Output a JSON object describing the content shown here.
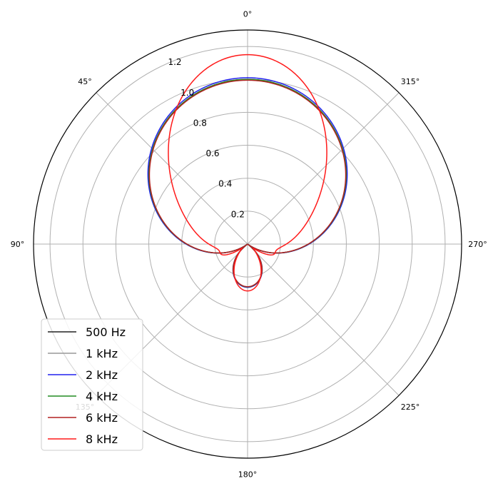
{
  "chart_data": {
    "type": "polar-line",
    "title": "",
    "theta_direction": "counterclockwise",
    "theta_zero_location": "top",
    "r_lim": [
      0,
      1.3
    ],
    "r_ticks": [
      0.2,
      0.4,
      0.6,
      0.8,
      1.0,
      1.2
    ],
    "r_tick_labels": [
      "0.2",
      "0.4",
      "0.6",
      "0.8",
      "1.0",
      "1.2"
    ],
    "r_label_angle_deg": 22.5,
    "theta_ticks_deg": [
      0,
      45,
      90,
      135,
      180,
      225,
      270,
      315
    ],
    "theta_tick_labels": [
      "0°",
      "45°",
      "90°",
      "135°",
      "180°",
      "225°",
      "270°",
      "315°"
    ],
    "grid": true,
    "legend_position": "lower left",
    "series": [
      {
        "name": "500 Hz",
        "color": "#222222",
        "gain": 1.0,
        "sharpness": 1.0
      },
      {
        "name": "1 kHz",
        "color": "#999999",
        "gain": 1.0,
        "sharpness": 1.0
      },
      {
        "name": "2 kHz",
        "color": "#2222ee",
        "gain": 1.01,
        "sharpness": 1.0
      },
      {
        "name": "4 kHz",
        "color": "#228b22",
        "gain": 1.0,
        "sharpness": 1.0
      },
      {
        "name": "6 kHz",
        "color": "#b22222",
        "gain": 0.995,
        "sharpness": 1.0
      },
      {
        "name": "8 kHz",
        "color": "#ff1a1a",
        "gain": 1.15,
        "sharpness": 3.4
      }
    ]
  }
}
